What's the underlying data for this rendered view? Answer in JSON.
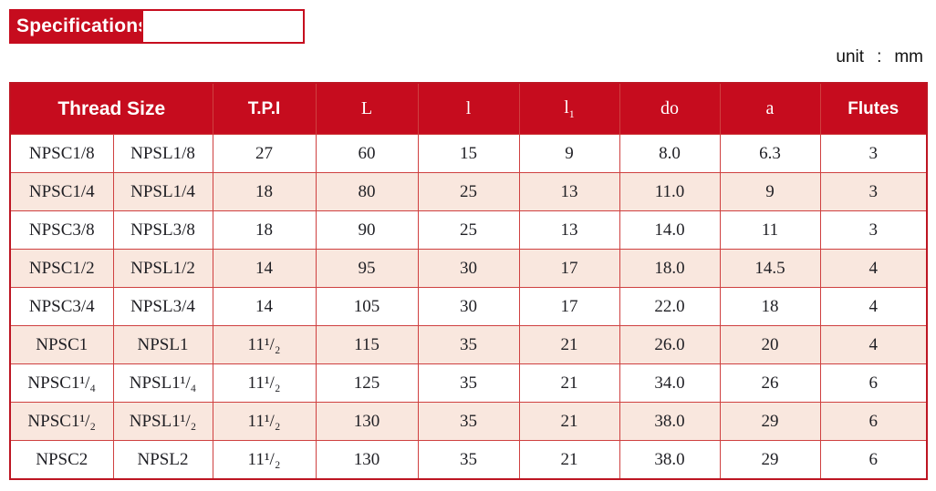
{
  "banner": {
    "label": "Specifications"
  },
  "unit_note": {
    "label": "unit",
    "separator": ":",
    "value": "mm"
  },
  "colors": {
    "header_red": "#c60c1e",
    "border_red": "#cf4040",
    "row_alt_pink": "#f9e7de",
    "body_text": "#1f1f24"
  },
  "table": {
    "header": [
      {
        "label": "Thread Size",
        "colspan": 2,
        "style": "sans-bold"
      },
      {
        "label": "T.P.I",
        "colspan": 1,
        "style": "sans"
      },
      {
        "label": "L",
        "colspan": 1,
        "style": "serif"
      },
      {
        "label": "l",
        "colspan": 1,
        "style": "serif"
      },
      {
        "label": "l",
        "sub": "1",
        "colspan": 1,
        "style": "serif"
      },
      {
        "label": "do",
        "colspan": 1,
        "style": "serif"
      },
      {
        "label": "a",
        "colspan": 1,
        "style": "serif"
      },
      {
        "label": "Flutes",
        "colspan": 1,
        "style": "sans-bold"
      }
    ],
    "rows": [
      [
        "NPSC1/8",
        "NPSL1/8",
        "27",
        "60",
        "15",
        "9",
        "8.0",
        "6.3",
        "3"
      ],
      [
        "NPSC1/4",
        "NPSL1/4",
        "18",
        "80",
        "25",
        "13",
        "11.0",
        "9",
        "3"
      ],
      [
        "NPSC3/8",
        "NPSL3/8",
        "18",
        "90",
        "25",
        "13",
        "14.0",
        "11",
        "3"
      ],
      [
        "NPSC1/2",
        "NPSL1/2",
        "14",
        "95",
        "30",
        "17",
        "18.0",
        "14.5",
        "4"
      ],
      [
        "NPSC3/4",
        "NPSL3/4",
        "14",
        "105",
        "30",
        "17",
        "22.0",
        "18",
        "4"
      ],
      [
        "NPSC1",
        "NPSL1",
        "11¹/₂",
        "115",
        "35",
        "21",
        "26.0",
        "20",
        "4"
      ],
      [
        "NPSC1¹/₄",
        "NPSL1¹/₄",
        "11¹/₂",
        "125",
        "35",
        "21",
        "34.0",
        "26",
        "6"
      ],
      [
        "NPSC1¹/₂",
        "NPSL1¹/₂",
        "11¹/₂",
        "130",
        "35",
        "21",
        "38.0",
        "29",
        "6"
      ],
      [
        "NPSC2",
        "NPSL2",
        "11¹/₂",
        "130",
        "35",
        "21",
        "38.0",
        "29",
        "6"
      ]
    ]
  }
}
